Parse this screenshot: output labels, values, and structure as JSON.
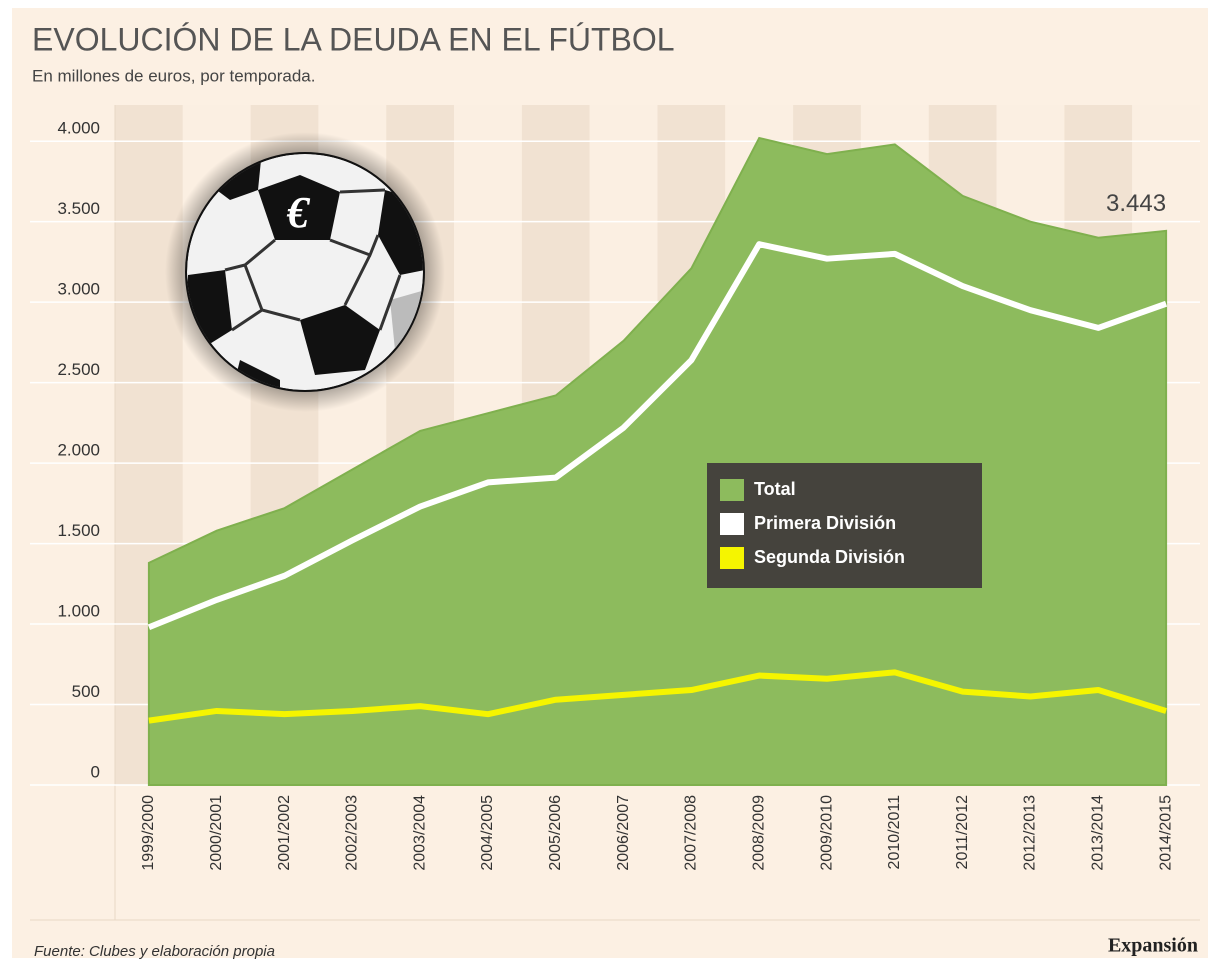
{
  "chart_data": {
    "type": "area",
    "title": "EVOLUCIÓN DE LA DEUDA EN EL FÚTBOL",
    "subtitle": "En millones de euros, por temporada.",
    "categories": [
      "1999/2000",
      "2000/2001",
      "2001/2002",
      "2002/2003",
      "2003/2004",
      "2004/2005",
      "2005/2006",
      "2006/2007",
      "2007/2008",
      "2008/2009",
      "2009/2010",
      "2010/2011",
      "2011/2012",
      "2012/2013",
      "2013/2014",
      "2014/2015"
    ],
    "series": [
      {
        "name": "Total",
        "color": "#8dbb5d",
        "kind": "area",
        "values": [
          1380,
          1580,
          1720,
          1960,
          2200,
          2310,
          2420,
          2760,
          3210,
          4020,
          3920,
          3980,
          3660,
          3500,
          3400,
          3443
        ],
        "value_labels": [
          null,
          null,
          null,
          null,
          null,
          null,
          null,
          null,
          null,
          null,
          null,
          null,
          null,
          null,
          null,
          "3.443"
        ]
      },
      {
        "name": "Primera División",
        "color": "#ffffff",
        "kind": "line",
        "values": [
          980,
          1150,
          1300,
          1520,
          1730,
          1880,
          1910,
          2220,
          2640,
          3360,
          3270,
          3300,
          3100,
          2950,
          2840,
          2990
        ]
      },
      {
        "name": "Segunda División",
        "color": "#f5f500",
        "kind": "line",
        "values": [
          400,
          460,
          440,
          460,
          490,
          440,
          530,
          560,
          590,
          680,
          660,
          700,
          580,
          550,
          590,
          460
        ]
      }
    ],
    "ylim": [
      0,
      4200
    ],
    "yticks": [
      0,
      500,
      {
        "value": 1000,
        "label": "1.000"
      },
      {
        "value": 1500,
        "label": "1.500"
      },
      {
        "value": 2000,
        "label": "2.000"
      },
      {
        "value": 2500,
        "label": "2.500"
      },
      {
        "value": 3000,
        "label": "3.000"
      },
      {
        "value": 3500,
        "label": "3.500"
      },
      {
        "value": 4000,
        "label": "4.000"
      }
    ],
    "grid": true,
    "icon_symbol": "€",
    "source": "Fuente: Clubes y elaboración propia",
    "brand": "Expansión"
  }
}
